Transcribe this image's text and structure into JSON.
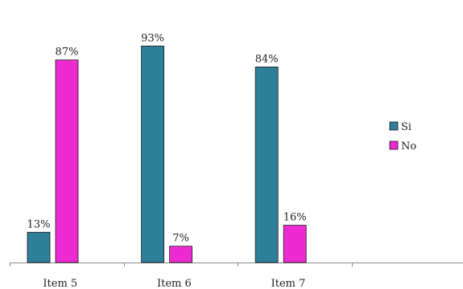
{
  "chart_data": {
    "type": "bar",
    "categories": [
      "Item 5",
      "Item 6",
      "Item 7"
    ],
    "series": [
      {
        "name": "Si",
        "values": [
          13,
          93,
          84
        ],
        "labels": [
          "13%",
          "93%",
          "84%"
        ],
        "color": "#2e7f9a"
      },
      {
        "name": "No",
        "values": [
          87,
          7,
          16
        ],
        "labels": [
          "87%",
          "7%",
          "16%"
        ],
        "color": "#ee2bd2"
      }
    ],
    "ylim": [
      0,
      100
    ],
    "unit": "%",
    "grid": false,
    "legend_position": "right"
  }
}
